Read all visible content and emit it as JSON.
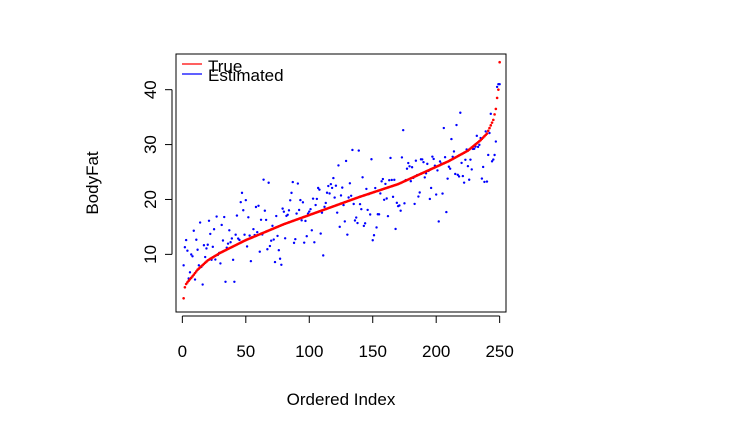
{
  "chart_data": {
    "type": "scatter",
    "title": "",
    "xlabel": "Ordered Index",
    "ylabel": "BodyFat",
    "xlim": [
      -5,
      255
    ],
    "ylim": [
      -0.5,
      46.5
    ],
    "x_ticks": [
      0,
      50,
      100,
      150,
      200,
      250
    ],
    "x_tick_labels": [
      "0",
      "50",
      "100",
      "150",
      "200",
      "250"
    ],
    "y_ticks": [
      10,
      20,
      30,
      40
    ],
    "y_tick_labels": [
      "10",
      "20",
      "30",
      "40"
    ],
    "grid": false,
    "legend_position": "top-left",
    "n_points": 250,
    "true_profile": {
      "x": [
        1,
        2,
        3,
        5,
        8,
        12,
        20,
        30,
        50,
        80,
        110,
        140,
        170,
        190,
        210,
        225,
        235,
        240,
        243,
        245,
        247,
        248,
        249,
        250
      ],
      "y": [
        2.0,
        4.0,
        4.6,
        5.2,
        6.0,
        7.2,
        8.9,
        10.3,
        12.6,
        15.5,
        18.0,
        20.5,
        22.8,
        24.9,
        27.0,
        28.9,
        30.8,
        32.0,
        33.5,
        34.5,
        36.5,
        38.5,
        40.0,
        45.0
      ]
    },
    "estimated_sample": {
      "x": [
        1,
        3,
        5,
        9,
        14,
        28,
        33,
        41,
        47,
        62,
        71,
        78,
        86,
        91,
        104,
        111,
        123,
        128,
        139,
        146,
        153,
        157,
        171,
        177,
        189,
        196,
        208,
        212,
        219,
        229,
        236,
        243,
        246,
        249
      ],
      "y": [
        8.0,
        12.6,
        5.6,
        14.3,
        15.8,
        9.9,
        16.8,
        5.0,
        21.2,
        16.3,
        15.2,
        8.1,
        21.2,
        22.9,
        12.2,
        9.8,
        26.2,
        16.0,
        28.9,
        18.1,
        14.9,
        23.3,
        18.9,
        25.6,
        27.3,
        22.1,
        17.7,
        31.0,
        35.8,
        29.2,
        23.8,
        35.6,
        28.1,
        41.0
      ]
    },
    "series": [
      {
        "name": "True",
        "color": "#ff0000"
      },
      {
        "name": "Estimated",
        "color": "#0000ff"
      }
    ]
  }
}
